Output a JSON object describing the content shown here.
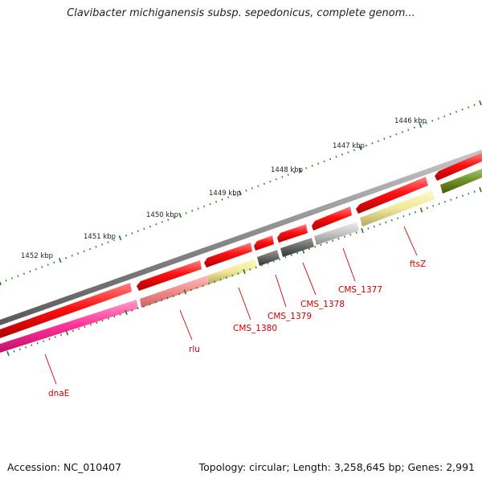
{
  "title": "Clavibacter michiganensis subsp. sepedonicus, complete genom...",
  "footer": {
    "accession": "Accession: NC_010407",
    "summary": "Topology: circular; Length: 3,258,645 bp; Genes: 2,991"
  },
  "colors": {
    "backbone": "#8a8a8a",
    "tick": "#1f7a1f",
    "label_red": "#cc0000",
    "feature_red": "#ee1111",
    "gene_pink": "#ff3399",
    "gene_salmon": "#f08a8a",
    "gene_khaki": "#eee59a",
    "gene_darkgray": "#666666",
    "gene_lightgray": "#c4c4c4",
    "gene_olive": "#6b8e23"
  },
  "kbp_labels": [
    "1446 kbp",
    "1447 kbp",
    "1448 kbp",
    "1449 kbp",
    "1450 kbp",
    "1451 kbp",
    "1452 kbp"
  ],
  "gene_labels": [
    "ftsZ",
    "CMS_1377",
    "CMS_1378",
    "CMS_1379",
    "CMS_1380",
    "rlu",
    "dnaE"
  ]
}
